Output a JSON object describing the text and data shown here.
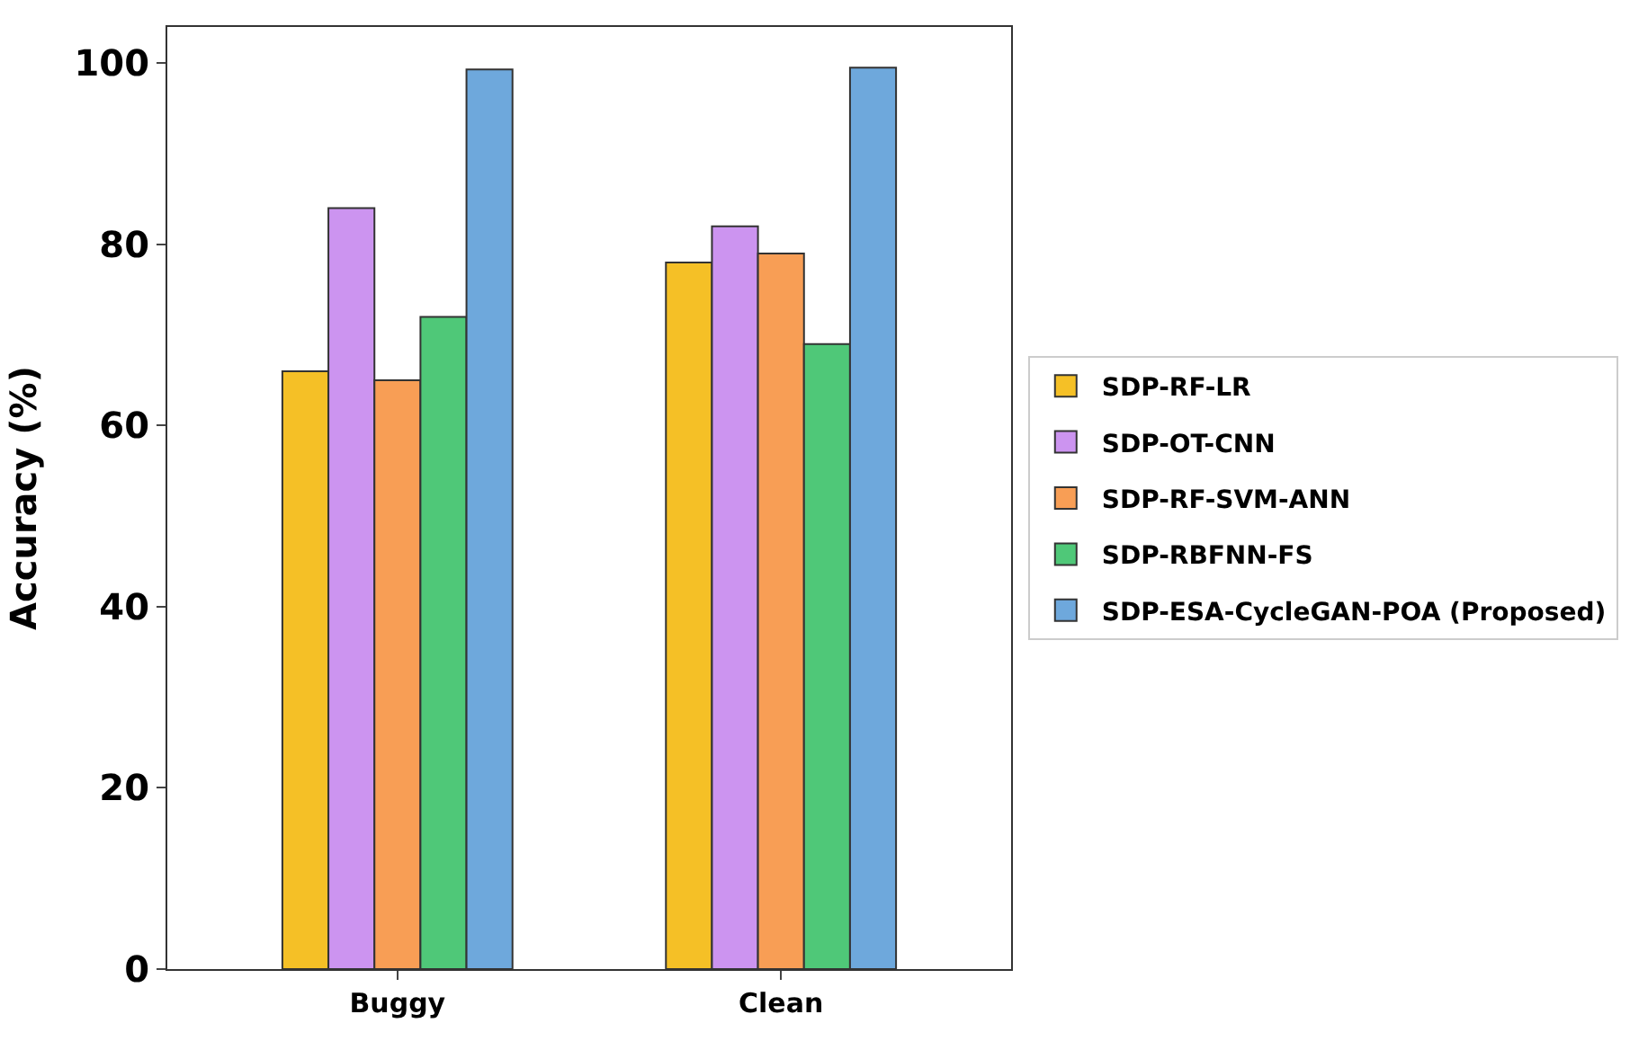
{
  "chart_data": {
    "type": "bar",
    "ylabel": "Accuracy (%)",
    "categories": [
      "Buggy",
      "Clean"
    ],
    "series": [
      {
        "name": "SDP-RF-LR",
        "color": "#f5c026",
        "values": [
          66,
          78
        ]
      },
      {
        "name": "SDP-OT-CNN",
        "color": "#cc94f0",
        "values": [
          84,
          82
        ]
      },
      {
        "name": "SDP-RF-SVM-ANN",
        "color": "#f89e55",
        "values": [
          65,
          79
        ]
      },
      {
        "name": "SDP-RBFNN-FS",
        "color": "#4fc878",
        "values": [
          72,
          69
        ]
      },
      {
        "name": "SDP-ESA-CycleGAN-POA (Proposed)",
        "color": "#6ea8dc",
        "values": [
          99.3,
          99.5
        ]
      }
    ],
    "ylim": [
      0,
      104
    ],
    "yticks": [
      0,
      20,
      40,
      60,
      80,
      100
    ],
    "legend": "right"
  }
}
